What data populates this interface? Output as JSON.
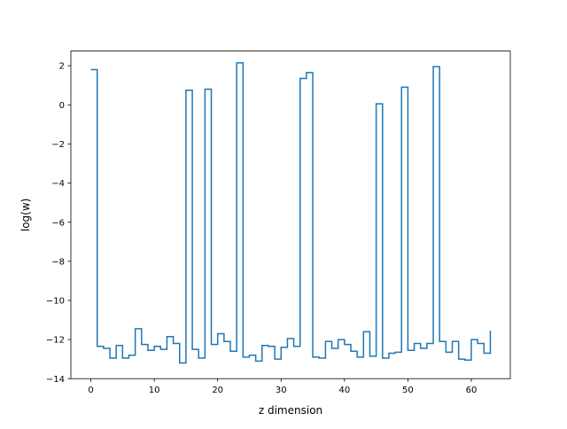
{
  "chart_data": {
    "type": "line",
    "drawstyle": "steps-post",
    "title": "",
    "xlabel": "z dimension",
    "ylabel": "log(w)",
    "xlim": [
      -3.15,
      66.15
    ],
    "ylim": [
      -14.0,
      2.75
    ],
    "xticks": [
      0,
      10,
      20,
      30,
      40,
      50,
      60
    ],
    "xtick_labels": [
      "0",
      "10",
      "20",
      "30",
      "40",
      "50",
      "60"
    ],
    "yticks": [
      2,
      0,
      -2,
      -4,
      -6,
      -8,
      -10,
      -12,
      -14
    ],
    "ytick_labels": [
      "2",
      "0",
      "−2",
      "−4",
      "−6",
      "−8",
      "−10",
      "−12",
      "−14"
    ],
    "grid": false,
    "legend": "none",
    "series": [
      {
        "color": "#1f77b4",
        "x": [
          0,
          1,
          2,
          3,
          4,
          5,
          6,
          7,
          8,
          9,
          10,
          11,
          12,
          13,
          14,
          15,
          16,
          17,
          18,
          19,
          20,
          21,
          22,
          23,
          24,
          25,
          26,
          27,
          28,
          29,
          30,
          31,
          32,
          33,
          34,
          35,
          36,
          37,
          38,
          39,
          40,
          41,
          42,
          43,
          44,
          45,
          46,
          47,
          48,
          49,
          50,
          51,
          52,
          53,
          54,
          55,
          56,
          57,
          58,
          59,
          60,
          61,
          62,
          63
        ],
        "y": [
          1.8,
          -12.35,
          -12.45,
          -12.95,
          -12.3,
          -12.95,
          -12.8,
          -11.45,
          -12.25,
          -12.55,
          -12.35,
          -12.5,
          -11.85,
          -12.2,
          -13.2,
          0.75,
          -12.5,
          -12.95,
          0.8,
          -12.25,
          -11.7,
          -12.1,
          -12.6,
          2.15,
          -12.9,
          -12.8,
          -13.1,
          -12.3,
          -12.35,
          -13.0,
          -12.4,
          -11.95,
          -12.35,
          1.35,
          1.65,
          -12.9,
          -12.95,
          -12.1,
          -12.45,
          -12.0,
          -12.25,
          -12.6,
          -12.9,
          -11.6,
          -12.85,
          0.05,
          -12.95,
          -12.7,
          -12.65,
          0.9,
          -12.55,
          -12.2,
          -12.45,
          -12.2,
          1.95,
          -12.1,
          -12.65,
          -12.1,
          -13.0,
          -13.05,
          -12.0,
          -12.2,
          -12.7,
          -11.55
        ]
      }
    ]
  }
}
